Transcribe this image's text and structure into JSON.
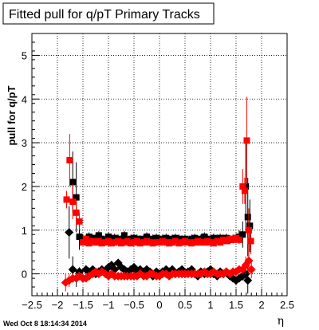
{
  "chart_data": {
    "type": "scatter",
    "title": "Fitted pull for q/pT  Primary Tracks",
    "xlabel": "η",
    "ylabel": "pull for q/pT",
    "xlim": [
      -2.5,
      2.5
    ],
    "ylim": [
      -0.5,
      5.5
    ],
    "xticks": [
      "−2.5",
      "−2",
      "−1.5",
      "−1",
      "−0.5",
      "0",
      "0.5",
      "1",
      "1.5",
      "2",
      "2.5"
    ],
    "yticks": [
      "0",
      "1",
      "2",
      "3",
      "4",
      "5"
    ],
    "grid": true,
    "series": [
      {
        "marker": "square",
        "color": "#000000",
        "x": [
          -1.7,
          -1.63,
          -1.57,
          -1.5,
          -1.44,
          -1.38,
          -1.31,
          -1.25,
          -1.19,
          -1.13,
          -1.06,
          -1.0,
          -0.94,
          -0.88,
          -0.81,
          -0.75,
          -0.69,
          -0.63,
          -0.56,
          -0.5,
          -0.44,
          -0.38,
          -0.31,
          -0.25,
          -0.19,
          -0.13,
          -0.06,
          0.0,
          0.06,
          0.13,
          0.19,
          0.25,
          0.31,
          0.38,
          0.44,
          0.5,
          0.56,
          0.63,
          0.69,
          0.75,
          0.81,
          0.88,
          0.94,
          1.0,
          1.06,
          1.13,
          1.19,
          1.25,
          1.31,
          1.38,
          1.44,
          1.5,
          1.56,
          1.63,
          1.69,
          1.73,
          1.77
        ],
        "y": [
          2.1,
          1.75,
          0.85,
          0.8,
          0.78,
          0.85,
          0.8,
          0.82,
          0.88,
          0.8,
          0.75,
          0.85,
          0.78,
          0.82,
          0.8,
          0.78,
          0.88,
          0.75,
          0.8,
          0.82,
          0.8,
          0.78,
          0.8,
          0.85,
          0.78,
          0.8,
          0.82,
          0.78,
          0.8,
          0.82,
          0.75,
          0.8,
          0.82,
          0.8,
          0.78,
          0.8,
          0.75,
          0.8,
          0.82,
          0.78,
          0.8,
          0.85,
          0.8,
          0.78,
          0.82,
          0.8,
          0.82,
          0.8,
          0.82,
          0.78,
          0.8,
          0.82,
          0.85,
          0.9,
          2.0,
          1.3,
          1.1
        ],
        "err": [
          0.7,
          0.8,
          0.3,
          0.1,
          0.1,
          0.1,
          0.1,
          0.1,
          0.1,
          0.1,
          0.1,
          0.1,
          0.1,
          0.1,
          0.1,
          0.1,
          0.1,
          0.1,
          0.1,
          0.1,
          0.1,
          0.1,
          0.1,
          0.1,
          0.1,
          0.1,
          0.1,
          0.1,
          0.1,
          0.1,
          0.1,
          0.1,
          0.1,
          0.1,
          0.1,
          0.1,
          0.1,
          0.1,
          0.1,
          0.1,
          0.1,
          0.1,
          0.1,
          0.1,
          0.1,
          0.1,
          0.1,
          0.1,
          0.1,
          0.1,
          0.1,
          0.1,
          0.15,
          0.3,
          1.0,
          0.9,
          0.6
        ]
      },
      {
        "marker": "diamond",
        "color": "#000000",
        "x": [
          -1.77,
          -1.7,
          -1.63,
          -1.57,
          -1.5,
          -1.44,
          -1.38,
          -1.31,
          -1.25,
          -1.19,
          -1.13,
          -1.06,
          -1.0,
          -0.94,
          -0.88,
          -0.81,
          -0.75,
          -0.69,
          -0.63,
          -0.56,
          -0.5,
          -0.44,
          -0.38,
          -0.31,
          -0.25,
          -0.19,
          -0.13,
          -0.06,
          0.0,
          0.06,
          0.13,
          0.19,
          0.25,
          0.31,
          0.38,
          0.44,
          0.5,
          0.56,
          0.63,
          0.69,
          0.75,
          0.81,
          0.88,
          0.94,
          1.0,
          1.06,
          1.13,
          1.19,
          1.25,
          1.31,
          1.38,
          1.44,
          1.5,
          1.56,
          1.63,
          1.69,
          1.73
        ],
        "y": [
          0.95,
          0.1,
          -0.1,
          0.05,
          -0.1,
          0.1,
          0.05,
          0.1,
          0.0,
          0.05,
          0.1,
          0.05,
          0.15,
          0.2,
          0.1,
          0.25,
          0.15,
          0.1,
          0.05,
          0.1,
          0.15,
          0.05,
          0.1,
          0.05,
          0.1,
          0.05,
          -0.05,
          0.05,
          0.0,
          0.05,
          0.1,
          0.05,
          0.1,
          0.0,
          0.05,
          0.1,
          0.0,
          0.05,
          0.1,
          0.0,
          -0.05,
          0.05,
          0.0,
          0.05,
          0.1,
          0.0,
          -0.05,
          0.05,
          0.0,
          0.05,
          -0.05,
          -0.1,
          -0.15,
          -0.1,
          -0.05,
          0.0,
          -0.15
        ],
        "err": [
          0.6,
          0.3,
          0.2,
          0.1,
          0.05,
          0.05,
          0.05,
          0.05,
          0.05,
          0.05,
          0.05,
          0.05,
          0.05,
          0.05,
          0.05,
          0.05,
          0.05,
          0.05,
          0.05,
          0.05,
          0.05,
          0.05,
          0.05,
          0.05,
          0.05,
          0.05,
          0.05,
          0.05,
          0.05,
          0.05,
          0.05,
          0.05,
          0.05,
          0.05,
          0.05,
          0.05,
          0.05,
          0.05,
          0.05,
          0.05,
          0.05,
          0.05,
          0.05,
          0.05,
          0.05,
          0.05,
          0.05,
          0.05,
          0.05,
          0.05,
          0.05,
          0.05,
          0.05,
          0.05,
          0.1,
          0.2,
          0.3
        ]
      },
      {
        "marker": "square",
        "color": "#ff0000",
        "x": [
          -1.82,
          -1.76,
          -1.7,
          -1.63,
          -1.57,
          -1.5,
          -1.44,
          -1.38,
          -1.31,
          -1.25,
          -1.19,
          -1.13,
          -1.06,
          -1.0,
          -0.94,
          -0.88,
          -0.81,
          -0.75,
          -0.69,
          -0.63,
          -0.56,
          -0.5,
          -0.44,
          -0.38,
          -0.31,
          -0.25,
          -0.19,
          -0.13,
          -0.06,
          0.0,
          0.06,
          0.13,
          0.19,
          0.25,
          0.31,
          0.38,
          0.44,
          0.5,
          0.56,
          0.63,
          0.69,
          0.75,
          0.81,
          0.88,
          0.94,
          1.0,
          1.06,
          1.13,
          1.19,
          1.25,
          1.31,
          1.38,
          1.44,
          1.5,
          1.56,
          1.63,
          1.67,
          1.71,
          1.75,
          1.79
        ],
        "y": [
          1.7,
          2.6,
          1.65,
          1.4,
          1.2,
          0.72,
          0.8,
          0.7,
          0.75,
          0.72,
          0.75,
          0.7,
          0.72,
          0.75,
          0.7,
          0.72,
          0.75,
          0.7,
          0.72,
          0.75,
          0.7,
          0.72,
          0.75,
          0.7,
          0.72,
          0.75,
          0.72,
          0.7,
          0.72,
          0.72,
          0.75,
          0.72,
          0.7,
          0.72,
          0.75,
          0.7,
          0.72,
          0.75,
          0.72,
          0.7,
          0.72,
          0.75,
          0.72,
          0.72,
          0.75,
          0.72,
          0.7,
          0.75,
          0.72,
          0.78,
          0.75,
          0.8,
          0.78,
          0.82,
          0.78,
          2.0,
          1.9,
          3.05,
          1.0,
          0.75
        ],
        "err": [
          0.2,
          0.6,
          0.4,
          0.3,
          0.2,
          0.05,
          0.05,
          0.05,
          0.05,
          0.05,
          0.05,
          0.05,
          0.05,
          0.05,
          0.05,
          0.05,
          0.05,
          0.05,
          0.05,
          0.05,
          0.05,
          0.05,
          0.05,
          0.05,
          0.05,
          0.05,
          0.05,
          0.05,
          0.05,
          0.05,
          0.05,
          0.05,
          0.05,
          0.05,
          0.05,
          0.05,
          0.05,
          0.05,
          0.05,
          0.05,
          0.05,
          0.05,
          0.05,
          0.05,
          0.05,
          0.05,
          0.05,
          0.05,
          0.05,
          0.05,
          0.05,
          0.05,
          0.05,
          0.05,
          0.1,
          0.4,
          0.3,
          1.0,
          0.5,
          0.3
        ]
      },
      {
        "marker": "diamond",
        "color": "#ff0000",
        "x": [
          -1.84,
          -1.77,
          -1.7,
          -1.63,
          -1.57,
          -1.5,
          -1.44,
          -1.38,
          -1.31,
          -1.25,
          -1.19,
          -1.13,
          -1.06,
          -1.0,
          -0.94,
          -0.88,
          -0.81,
          -0.75,
          -0.69,
          -0.63,
          -0.56,
          -0.5,
          -0.44,
          -0.38,
          -0.31,
          -0.25,
          -0.19,
          -0.13,
          -0.06,
          0.0,
          0.06,
          0.13,
          0.19,
          0.25,
          0.31,
          0.38,
          0.44,
          0.5,
          0.56,
          0.63,
          0.69,
          0.75,
          0.81,
          0.88,
          0.94,
          1.0,
          1.06,
          1.13,
          1.19,
          1.25,
          1.31,
          1.38,
          1.44,
          1.5,
          1.56,
          1.63,
          1.69,
          1.75,
          1.8
        ],
        "y": [
          -0.2,
          -0.15,
          -0.1,
          -0.1,
          -0.05,
          -0.1,
          -0.1,
          -0.05,
          0.0,
          0.05,
          0.0,
          0.05,
          0.0,
          -0.05,
          0.0,
          -0.05,
          -0.05,
          -0.05,
          -0.05,
          -0.05,
          -0.05,
          -0.05,
          -0.05,
          0.0,
          -0.05,
          -0.05,
          0.0,
          0.0,
          -0.05,
          -0.05,
          0.0,
          0.0,
          -0.05,
          0.0,
          0.0,
          0.0,
          0.0,
          0.0,
          0.0,
          0.0,
          0.0,
          0.0,
          0.0,
          0.05,
          0.0,
          0.0,
          0.05,
          0.0,
          0.0,
          0.0,
          0.05,
          0.0,
          0.05,
          0.05,
          0.1,
          0.1,
          0.2,
          0.3,
          0.1
        ],
        "err": [
          0.2,
          0.15,
          0.1,
          0.05,
          0.05,
          0.05,
          0.05,
          0.05,
          0.05,
          0.05,
          0.05,
          0.05,
          0.05,
          0.05,
          0.05,
          0.05,
          0.05,
          0.05,
          0.05,
          0.05,
          0.05,
          0.05,
          0.05,
          0.05,
          0.05,
          0.05,
          0.05,
          0.05,
          0.05,
          0.05,
          0.05,
          0.05,
          0.05,
          0.05,
          0.05,
          0.05,
          0.05,
          0.05,
          0.05,
          0.05,
          0.05,
          0.05,
          0.05,
          0.05,
          0.05,
          0.05,
          0.05,
          0.05,
          0.05,
          0.05,
          0.05,
          0.05,
          0.05,
          0.05,
          0.05,
          0.1,
          0.2,
          0.3,
          0.2
        ]
      }
    ]
  },
  "footer": {
    "datestamp": "Wed Oct  8 18:14:34 2014"
  }
}
